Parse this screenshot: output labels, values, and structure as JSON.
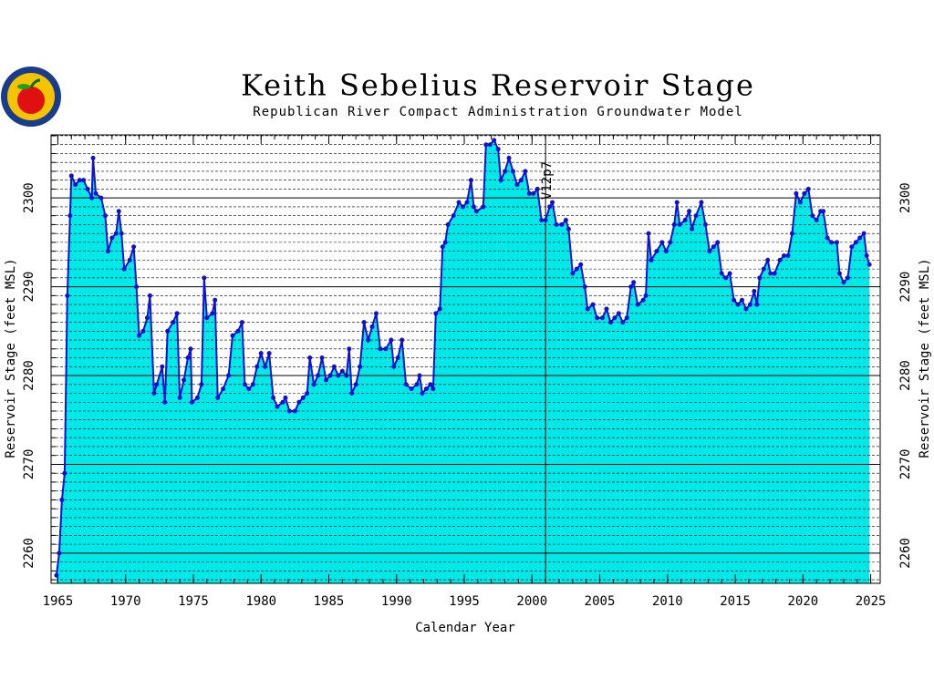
{
  "chart_data": {
    "type": "area",
    "title": "Keith Sebelius Reservoir Stage",
    "subtitle": "Republican River Compact Administration Groundwater Model",
    "xlabel": "Calendar Year",
    "ylabel": "Reservoir Stage (feet MSL)",
    "annotations": [
      {
        "text": "V12p7",
        "x": 2001
      }
    ],
    "color": "#00e8e8",
    "line_color": "#1010d0",
    "grid": true,
    "xlim": [
      1964.5,
      2025.7
    ],
    "ylim": [
      2256.6,
      2307.1
    ],
    "xticks": [
      1965,
      1970,
      1975,
      1980,
      1985,
      1990,
      1995,
      2000,
      2005,
      2010,
      2015,
      2020,
      2025
    ],
    "xminorticks": [
      1965,
      1966,
      1967,
      1968,
      1969,
      1970,
      1971,
      1972,
      1973,
      1974,
      1975,
      1976,
      1977,
      1978,
      1979,
      1980,
      1981,
      1982,
      1983,
      1984,
      1985,
      1986,
      1987,
      1988,
      1989,
      1990,
      1991,
      1992,
      1993,
      1994,
      1995,
      1996,
      1997,
      1998,
      1999,
      2000,
      2001,
      2002,
      2003,
      2004,
      2005,
      2006,
      2007,
      2008,
      2009,
      2010,
      2011,
      2012,
      2013,
      2014,
      2015,
      2016,
      2017,
      2018,
      2019,
      2020,
      2021,
      2022,
      2023,
      2024,
      2025
    ],
    "yticks": [
      2260,
      2270,
      2280,
      2290,
      2300
    ],
    "yminorticks": [
      2257,
      2258,
      2259,
      2261,
      2262,
      2263,
      2264,
      2265,
      2266,
      2267,
      2268,
      2269,
      2271,
      2272,
      2273,
      2274,
      2275,
      2276,
      2277,
      2278,
      2279,
      2281,
      2282,
      2283,
      2284,
      2285,
      2286,
      2287,
      2288,
      2289,
      2291,
      2292,
      2293,
      2294,
      2295,
      2296,
      2297,
      2298,
      2299,
      2301,
      2302,
      2303,
      2304,
      2305,
      2306,
      2307
    ],
    "x": [
      1964.9,
      1965.1,
      1965.3,
      1965.5,
      1965.7,
      1965.9,
      1966.0,
      1966.3,
      1966.6,
      1966.9,
      1967.2,
      1967.5,
      1967.6,
      1967.8,
      1968.2,
      1968.5,
      1968.7,
      1969.0,
      1969.3,
      1969.5,
      1969.7,
      1969.9,
      1970.3,
      1970.6,
      1970.8,
      1971.0,
      1971.3,
      1971.6,
      1971.8,
      1972.1,
      1972.3,
      1972.7,
      1972.9,
      1973.1,
      1973.5,
      1973.8,
      1974.0,
      1974.3,
      1974.6,
      1974.8,
      1974.9,
      1975.3,
      1975.6,
      1975.8,
      1976.0,
      1976.4,
      1976.6,
      1976.8,
      1977.2,
      1977.6,
      1977.9,
      1978.3,
      1978.6,
      1978.8,
      1979.1,
      1979.4,
      1979.7,
      1980.0,
      1980.3,
      1980.6,
      1980.9,
      1981.2,
      1981.6,
      1981.8,
      1982.1,
      1982.5,
      1982.8,
      1983.1,
      1983.4,
      1983.6,
      1983.9,
      1984.2,
      1984.5,
      1984.8,
      1985.1,
      1985.4,
      1985.7,
      1986.0,
      1986.3,
      1986.5,
      1986.7,
      1987.0,
      1987.3,
      1987.6,
      1987.9,
      1988.2,
      1988.5,
      1988.8,
      1989.2,
      1989.6,
      1989.8,
      1990.1,
      1990.4,
      1990.7,
      1991.1,
      1991.5,
      1991.7,
      1991.9,
      1992.2,
      1992.5,
      1992.7,
      1992.9,
      1993.2,
      1993.4,
      1993.6,
      1993.8,
      1994.2,
      1994.6,
      1994.9,
      1995.2,
      1995.5,
      1995.7,
      1995.9,
      1996.4,
      1996.6,
      1996.9,
      1997.2,
      1997.5,
      1997.7,
      1998.0,
      1998.3,
      1998.6,
      1998.9,
      1999.2,
      1999.5,
      1999.8,
      2000.1,
      2000.4,
      2000.7,
      2001.0,
      2001.3,
      2001.5,
      2001.8,
      2002.2,
      2002.5,
      2002.7,
      2003.0,
      2003.3,
      2003.6,
      2003.9,
      2004.1,
      2004.5,
      2004.8,
      2005.2,
      2005.5,
      2005.8,
      2006.1,
      2006.4,
      2006.7,
      2007.0,
      2007.3,
      2007.5,
      2007.8,
      2008.2,
      2008.4,
      2008.6,
      2008.8,
      2009.2,
      2009.6,
      2009.9,
      2010.2,
      2010.5,
      2010.7,
      2010.9,
      2011.3,
      2011.6,
      2011.8,
      2012.1,
      2012.5,
      2012.8,
      2013.1,
      2013.4,
      2013.7,
      2014.0,
      2014.3,
      2014.6,
      2014.9,
      2015.2,
      2015.5,
      2015.8,
      2016.1,
      2016.4,
      2016.6,
      2016.8,
      2017.1,
      2017.4,
      2017.6,
      2017.9,
      2018.3,
      2018.6,
      2018.9,
      2019.2,
      2019.5,
      2019.8,
      2020.1,
      2020.4,
      2020.7,
      2021.0,
      2021.3,
      2021.5,
      2021.8,
      2022.1,
      2022.5,
      2022.7,
      2023.0,
      2023.3,
      2023.6,
      2023.9,
      2024.2,
      2024.5,
      2024.7,
      2024.9
    ],
    "values": [
      2257.5,
      2260,
      2266,
      2269,
      2289,
      2298,
      2302.5,
      2301.5,
      2302,
      2302,
      2301,
      2300,
      2304.5,
      2300.5,
      2300,
      2298,
      2294,
      2295.5,
      2296,
      2298.5,
      2296,
      2292,
      2293,
      2294.5,
      2290,
      2284.5,
      2285,
      2286.5,
      2289,
      2278,
      2279,
      2281,
      2277,
      2285,
      2286,
      2287,
      2277.5,
      2279.5,
      2282,
      2283,
      2277,
      2277.5,
      2279,
      2291,
      2286.5,
      2287,
      2288.5,
      2277.5,
      2278.5,
      2280,
      2284.5,
      2285,
      2286,
      2279,
      2278.5,
      2279,
      2281,
      2282.5,
      2281,
      2282.5,
      2277.5,
      2276.5,
      2277,
      2277.5,
      2276,
      2276,
      2277,
      2277.5,
      2278,
      2282,
      2279,
      2280,
      2282,
      2279.5,
      2280,
      2281,
      2280,
      2280.5,
      2280,
      2283,
      2278,
      2279,
      2281,
      2286,
      2284,
      2285.5,
      2287,
      2283,
      2283,
      2284,
      2281,
      2282,
      2284,
      2279,
      2278.5,
      2279,
      2280,
      2278,
      2278.5,
      2279,
      2278.5,
      2287,
      2287.5,
      2294.5,
      2295,
      2297,
      2298,
      2299.5,
      2299,
      2299.5,
      2302,
      2299,
      2298.5,
      2299,
      2306,
      2306,
      2306.5,
      2305.5,
      2302,
      2303,
      2304.5,
      2303,
      2301.5,
      2302,
      2303,
      2300.5,
      2300.5,
      2301,
      2297.5,
      2297.5,
      2299,
      2299.5,
      2297,
      2297,
      2297.5,
      2296.5,
      2291.5,
      2292,
      2292.5,
      2290,
      2287.5,
      2288,
      2286.5,
      2286.5,
      2287.5,
      2286,
      2286.5,
      2287,
      2286,
      2286.5,
      2290,
      2290.5,
      2288,
      2288.5,
      2289,
      2296,
      2293,
      2294,
      2295,
      2294,
      2295,
      2297,
      2299.5,
      2297,
      2297.5,
      2298.5,
      2296.5,
      2298,
      2299.5,
      2297,
      2294,
      2294.5,
      2295,
      2291.5,
      2291,
      2291.5,
      2288.5,
      2288,
      2288.5,
      2287.5,
      2288,
      2289.5,
      2288,
      2291,
      2292,
      2293,
      2291.5,
      2291.5,
      2293,
      2293.5,
      2293.5,
      2296,
      2300.5,
      2299.5,
      2300.5,
      2301,
      2298,
      2297.5,
      2298.5,
      2298.5,
      2295.5,
      2295,
      2295,
      2291.5,
      2290.5,
      2291,
      2294.5,
      2295,
      2295.5,
      2296,
      2293.5,
      2292.5
    ]
  }
}
